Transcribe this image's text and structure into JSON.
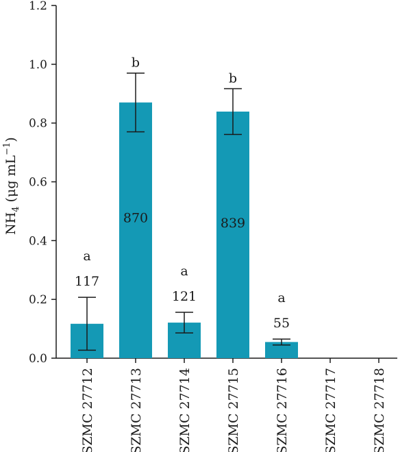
{
  "chart_data": {
    "type": "bar",
    "categories": [
      "SZMC 27712",
      "SZMC 27713",
      "SZMC 27714",
      "SZMC 27715",
      "SZMC 27716",
      "SZMC 27717",
      "SZMC 27718"
    ],
    "values": [
      0.117,
      0.87,
      0.121,
      0.839,
      0.055,
      0,
      0
    ],
    "error": [
      0.09,
      0.1,
      0.035,
      0.078,
      0.01,
      null,
      null
    ],
    "data_labels": [
      "117",
      "870",
      "121",
      "839",
      "55",
      "",
      ""
    ],
    "significance": [
      "a",
      "b",
      "a",
      "b",
      "a",
      "",
      ""
    ],
    "ylabel": {
      "main": "NH",
      "sub": "4",
      "rest": " (μg mL",
      "sup": "−1",
      "close": ")"
    },
    "xlabel": "",
    "ylim": [
      0,
      1.2
    ],
    "yticks": [
      "0.0",
      "0.2",
      "0.4",
      "0.6",
      "0.8",
      "1.0",
      "1.2"
    ],
    "grid": false,
    "bar_color": "#1499b5"
  }
}
